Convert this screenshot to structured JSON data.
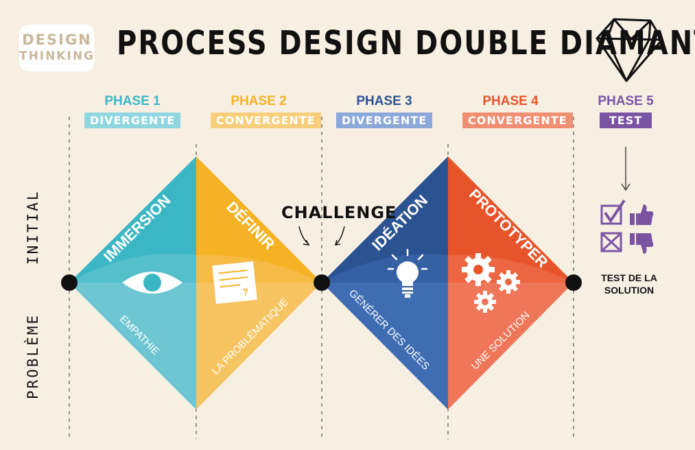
{
  "logo": {
    "line1": "DESIGN",
    "line2": "THINKING"
  },
  "title": "PROCESS DESIGN DOUBLE DIAMANT",
  "phases": [
    {
      "num": "PHASE 1",
      "tag": "DIVERGENTE",
      "color": "#3bb6c5",
      "tag_bg": "#8fd6e1"
    },
    {
      "num": "PHASE 2",
      "tag": "CONVERGENTE",
      "color": "#f5b224",
      "tag_bg": "#f7cf7c"
    },
    {
      "num": "PHASE 3",
      "tag": "DIVERGENTE",
      "color": "#2b5392",
      "tag_bg": "#8ba8d9"
    },
    {
      "num": "PHASE 4",
      "tag": "CONVERGENTE",
      "color": "#e8542a",
      "tag_bg": "#f08f72"
    },
    {
      "num": "PHASE 5",
      "tag": "TEST",
      "color": "#7a54a3",
      "tag_bg": "#7a54a3"
    }
  ],
  "side_label": {
    "word1": "PROBLÈME",
    "word2": "INITIAL"
  },
  "challenge": "CHALLENGE",
  "diamonds": {
    "immersion": {
      "title": "IMMERSION",
      "sub": "EMPATHIE"
    },
    "definir": {
      "title": "DÉFINIR",
      "sub": "LA PROBLÉMATIQUE"
    },
    "ideation": {
      "title": "IDÉATION",
      "sub": "GÉNÉRER DES IDÉES"
    },
    "prototyper": {
      "title": "PROTOTYPER",
      "sub": "UNE SOLUTION"
    }
  },
  "test_solution": {
    "line1": "TEST DE LA",
    "line2": "SOLUTION"
  },
  "icons": [
    "diamond-icon",
    "eye-icon",
    "note-question-icon",
    "lightbulb-icon",
    "gears-icon",
    "check-box-icon",
    "thumbs-up-icon",
    "x-box-icon",
    "thumbs-down-icon",
    "arrow-down-icon"
  ]
}
